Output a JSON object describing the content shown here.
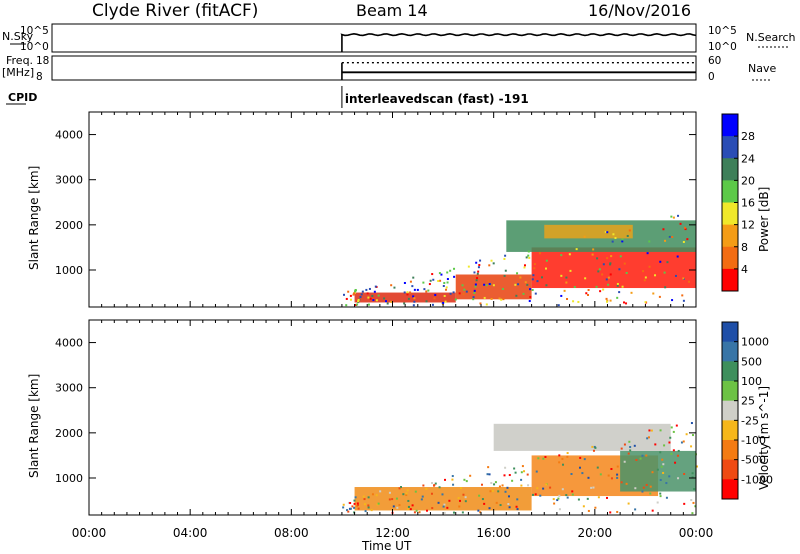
{
  "header": {
    "station": "Clyde River (fitACF)",
    "beam": "Beam 14",
    "date": "16/Nov/2016"
  },
  "chart_data": [
    {
      "type": "line",
      "name_left": "N.Sky",
      "name_right": "N.Search",
      "left_ticks": [
        "10^5",
        "10^0"
      ],
      "right_ticks": [
        "10^5",
        "10^0"
      ],
      "start_hour": 10.0,
      "level": 0.62
    },
    {
      "type": "line",
      "left_label_1": "Freq.",
      "left_label_2": "[MHz]",
      "left_ticks": [
        "18",
        "8"
      ],
      "right_label": "Nave",
      "right_ticks": [
        "60",
        "0"
      ],
      "freq_level": 0.32,
      "nave_level": 0.72
    },
    {
      "type": "annotation",
      "label": "CPID",
      "text": "interleavedscan (fast) -191"
    },
    {
      "type": "heatmap",
      "ylabel": "Slant Range [km]",
      "yticks": [
        1000,
        2000,
        3000,
        4000
      ],
      "ylim": [
        180,
        4500
      ],
      "xlim": [
        0,
        24
      ],
      "colorbar_label": "Power [dB]",
      "colorbar_ticks": [
        "4",
        "8",
        "12",
        "16",
        "20",
        "24",
        "28"
      ],
      "colorbar_colors": [
        "#0000ff",
        "#2a4db5",
        "#3e7f59",
        "#5cc948",
        "#f0e82a",
        "#f49c16",
        "#f36c12",
        "#ff0000"
      ],
      "bands": [
        {
          "h0": 10.5,
          "h1": 14.5,
          "r_low": 280,
          "r_high": 500,
          "color": "#dd2a10"
        },
        {
          "h0": 14.5,
          "h1": 17.5,
          "r_low": 350,
          "r_high": 900,
          "color": "#e8410d"
        },
        {
          "h0": 17.5,
          "h1": 24.0,
          "r_low": 600,
          "r_high": 1500,
          "color": "#ff1b0a"
        },
        {
          "h0": 16.5,
          "h1": 24.0,
          "r_low": 1400,
          "r_high": 2100,
          "color": "#3f8d5d"
        },
        {
          "h0": 18.0,
          "h1": 21.5,
          "r_low": 1700,
          "r_high": 2000,
          "color": "#e6a21c"
        }
      ]
    },
    {
      "type": "heatmap",
      "ylabel": "Slant Range [km]",
      "yticks": [
        1000,
        2000,
        3000,
        4000
      ],
      "ylim": [
        180,
        4500
      ],
      "xlim": [
        0,
        24
      ],
      "xticks": [
        "00:00",
        "04:00",
        "08:00",
        "12:00",
        "16:00",
        "20:00",
        "00:00"
      ],
      "xlabel": "Time UT",
      "colorbar_label": "Velocity [m s^-1]",
      "colorbar_ticks": [
        "1000",
        "500",
        "100",
        "25",
        "-25",
        "-100",
        "-500",
        "-1000"
      ],
      "colorbar_colors": [
        "#1f4fa8",
        "#3875a7",
        "#3e8f5c",
        "#6cc244",
        "#cfcfc8",
        "#f6b71a",
        "#f47b12",
        "#ef4a13",
        "#ff0000"
      ],
      "bands": [
        {
          "h0": 10.5,
          "h1": 17.5,
          "r_low": 280,
          "r_high": 800,
          "color": "#f08c16"
        },
        {
          "h0": 17.5,
          "h1": 22.5,
          "r_low": 600,
          "r_high": 1500,
          "color": "#f5861a"
        },
        {
          "h0": 21.0,
          "h1": 24.0,
          "r_low": 700,
          "r_high": 1600,
          "color": "#4a9268"
        },
        {
          "h0": 16.0,
          "h1": 23.0,
          "r_low": 1600,
          "r_high": 2200,
          "color": "#c8c8c2"
        }
      ]
    }
  ]
}
